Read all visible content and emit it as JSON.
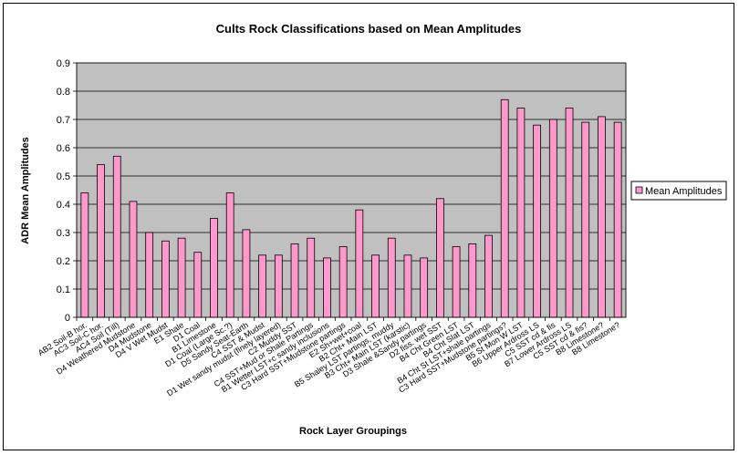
{
  "chart_data": {
    "type": "bar",
    "title": "Cults Rock Classifications based on Mean Amplitudes",
    "xlabel": "Rock Layer Groupings",
    "ylabel": "ADR Mean Amplitudes",
    "ylim": [
      0,
      0.9
    ],
    "yticks": [
      "0",
      "0.1",
      "0.2",
      "0.3",
      "0.4",
      "0.5",
      "0.6",
      "0.7",
      "0.8",
      "0.9"
    ],
    "grid": true,
    "legend_position": "right",
    "colors": {
      "bar": "#ff99cc",
      "plot_bg": "#c0c0c0",
      "bar_edge": "#000000"
    },
    "categories": [
      "AB2 Soil-B hor.",
      "AC3 Soil-C hor.",
      "AC4 Soil (Till)",
      "D4 Weathered Mudstone",
      "D4 Mudstone",
      "D4 V Wet Mudst",
      "E1 Shale",
      "D1 Coal",
      "B1 Limestone",
      "D1 Coal (Large Sc.?)",
      "D5 Sandy Seat-Earth",
      "C4 SST & Mudst",
      "D1 Wet sandy mudst (finely layered)",
      "C2 Muddy SST",
      "C4 SST+Mud or Shale Partings",
      "B1 Wetter LST+c sandy inclusions",
      "C3 Hard SST+Mudstone partings",
      "E2 Sh+wet+coal",
      "B2 Cht+ Main LST",
      "B5 Shaley LST partings, muddy",
      "B3 Cht+ Main LST (karstic)",
      "D3 Shale &Sandy partings",
      "D2 fiss. wet SST",
      "B4 Cht Green LST",
      "B4 Cht Slat LST",
      "B4 Cht St LST+shale partings",
      "C3 Hard SST+Mudstone partings?",
      "B5 St Mon W LST",
      "B6 Upper Ardross LS",
      "C5 SST cd & fis",
      "B7 Lower Ardross LS",
      "C5 SST cd & fis?",
      "B8 Limestone?",
      "B8 Limestone?"
    ],
    "visible_label_indices": [
      0,
      1,
      2,
      3,
      4,
      5,
      6,
      7,
      8,
      9,
      10,
      11,
      12,
      13,
      14,
      15,
      16,
      17,
      18,
      19,
      20,
      21,
      22,
      23,
      24,
      25,
      26,
      27,
      28,
      29,
      30,
      31,
      32,
      33
    ],
    "series": [
      {
        "name": "Mean Amplitudes",
        "values": [
          0.44,
          0.54,
          0.57,
          0.41,
          0.3,
          0.27,
          0.28,
          0.23,
          0.35,
          0.44,
          0.31,
          0.22,
          0.22,
          0.26,
          0.28,
          0.21,
          0.25,
          0.38,
          0.22,
          0.28,
          0.22,
          0.21,
          0.42,
          0.25,
          0.26,
          0.29,
          0.77,
          0.74,
          0.68,
          0.7,
          0.74,
          0.69,
          0.71,
          0.69
        ]
      }
    ]
  }
}
